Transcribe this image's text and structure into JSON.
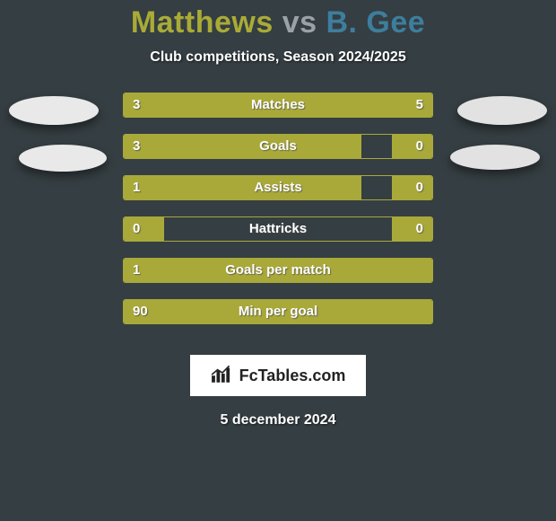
{
  "background_color": "#353e42",
  "title": {
    "p1": "Matthews",
    "vs": "vs",
    "p2": "B. Gee",
    "p1_color": "#a9ab36",
    "vs_color": "#9aa2a5",
    "p2_color": "#3d7e9e",
    "fontsize": 34
  },
  "subtitle": "Club competitions, Season 2024/2025",
  "badges": {
    "left_color": "#e9e9e9",
    "right_color": "#e2e2e2"
  },
  "stats": {
    "border_color": "#a8a83b",
    "left_fill_color": "#a9a93a",
    "right_fill_color": "#a9a93a",
    "text_color": "#ffffff",
    "label_fontsize": 15,
    "rows": [
      {
        "label": "Matches",
        "left": "3",
        "right": "5",
        "left_pct": 36,
        "right_pct": 64
      },
      {
        "label": "Goals",
        "left": "3",
        "right": "0",
        "left_pct": 77,
        "right_pct": 13
      },
      {
        "label": "Assists",
        "left": "1",
        "right": "0",
        "left_pct": 77,
        "right_pct": 13
      },
      {
        "label": "Hattricks",
        "left": "0",
        "right": "0",
        "left_pct": 13,
        "right_pct": 13
      },
      {
        "label": "Goals per match",
        "left": "1",
        "right": "",
        "left_pct": 100,
        "right_pct": 0
      },
      {
        "label": "Min per goal",
        "left": "90",
        "right": "",
        "left_pct": 100,
        "right_pct": 0
      }
    ]
  },
  "logo": {
    "text": "FcTables.com",
    "icon_name": "bars-icon",
    "bg": "#ffffff",
    "text_color": "#222222"
  },
  "date": "5 december 2024"
}
